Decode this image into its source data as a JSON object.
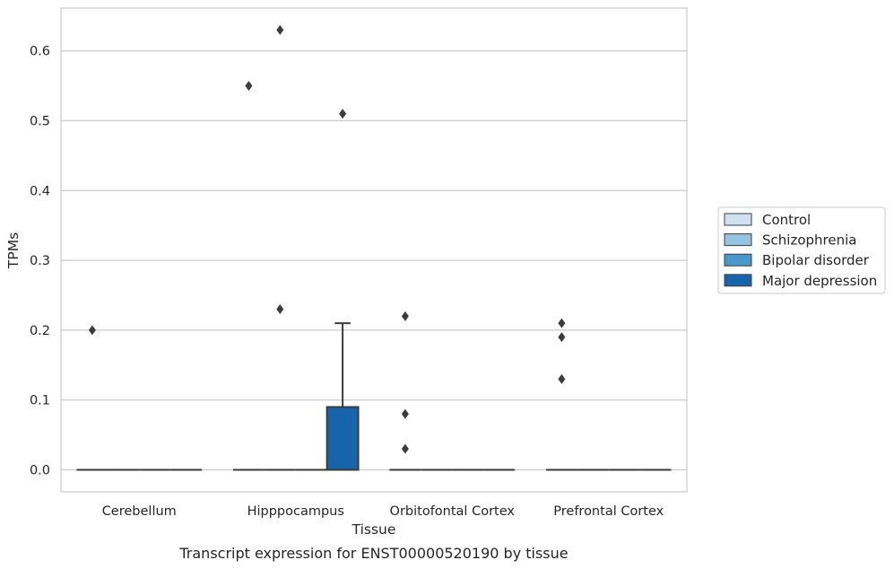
{
  "caption": "Transcript expression for ENST00000520190 by tissue",
  "chart_data": {
    "type": "box",
    "title": "",
    "xlabel": "Tissue",
    "ylabel": "TPMs",
    "ylim": [
      -0.03,
      0.665
    ],
    "yticks": [
      0.0,
      0.1,
      0.2,
      0.3,
      0.4,
      0.5,
      0.6
    ],
    "ytick_labels": [
      "0.0",
      "0.1",
      "0.2",
      "0.3",
      "0.4",
      "0.5",
      "0.6"
    ],
    "grid": true,
    "legend_position": "right",
    "categories": [
      "Cerebellum",
      "Hipppocampus",
      "Orbitofontal Cortex",
      "Prefrontal Cortex"
    ],
    "series": [
      {
        "name": "Control",
        "color": "#d0e1f2",
        "boxes": [
          {
            "q1": 0,
            "median": 0,
            "q3": 0,
            "whisker_low": 0,
            "whisker_high": 0,
            "outliers": [
              0.2
            ]
          },
          {
            "q1": 0,
            "median": 0,
            "q3": 0,
            "whisker_low": 0,
            "whisker_high": 0,
            "outliers": [
              0.55
            ]
          },
          {
            "q1": 0,
            "median": 0,
            "q3": 0,
            "whisker_low": 0,
            "whisker_high": 0,
            "outliers": [
              0.22,
              0.08,
              0.03
            ]
          },
          {
            "q1": 0,
            "median": 0,
            "q3": 0,
            "whisker_low": 0,
            "whisker_high": 0,
            "outliers": [
              0.21,
              0.19,
              0.13
            ]
          }
        ]
      },
      {
        "name": "Schizophrenia",
        "color": "#94c4df",
        "boxes": [
          {
            "q1": 0,
            "median": 0,
            "q3": 0,
            "whisker_low": 0,
            "whisker_high": 0,
            "outliers": []
          },
          {
            "q1": 0,
            "median": 0,
            "q3": 0,
            "whisker_low": 0,
            "whisker_high": 0,
            "outliers": [
              0.63,
              0.23
            ]
          },
          {
            "q1": 0,
            "median": 0,
            "q3": 0,
            "whisker_low": 0,
            "whisker_high": 0,
            "outliers": []
          },
          {
            "q1": 0,
            "median": 0,
            "q3": 0,
            "whisker_low": 0,
            "whisker_high": 0,
            "outliers": []
          }
        ]
      },
      {
        "name": "Bipolar disorder",
        "color": "#4a98c9",
        "boxes": [
          {
            "q1": 0,
            "median": 0,
            "q3": 0,
            "whisker_low": 0,
            "whisker_high": 0,
            "outliers": []
          },
          {
            "q1": 0,
            "median": 0,
            "q3": 0,
            "whisker_low": 0,
            "whisker_high": 0,
            "outliers": []
          },
          {
            "q1": 0,
            "median": 0,
            "q3": 0,
            "whisker_low": 0,
            "whisker_high": 0,
            "outliers": []
          },
          {
            "q1": 0,
            "median": 0,
            "q3": 0,
            "whisker_low": 0,
            "whisker_high": 0,
            "outliers": []
          }
        ]
      },
      {
        "name": "Major depression",
        "color": "#1764ab",
        "boxes": [
          {
            "q1": 0,
            "median": 0,
            "q3": 0,
            "whisker_low": 0,
            "whisker_high": 0,
            "outliers": []
          },
          {
            "q1": 0,
            "median": 0,
            "q3": 0.09,
            "whisker_low": 0,
            "whisker_high": 0.21,
            "outliers": [
              0.51
            ]
          },
          {
            "q1": 0,
            "median": 0,
            "q3": 0,
            "whisker_low": 0,
            "whisker_high": 0,
            "outliers": []
          },
          {
            "q1": 0,
            "median": 0,
            "q3": 0,
            "whisker_low": 0,
            "whisker_high": 0,
            "outliers": []
          }
        ]
      }
    ]
  }
}
